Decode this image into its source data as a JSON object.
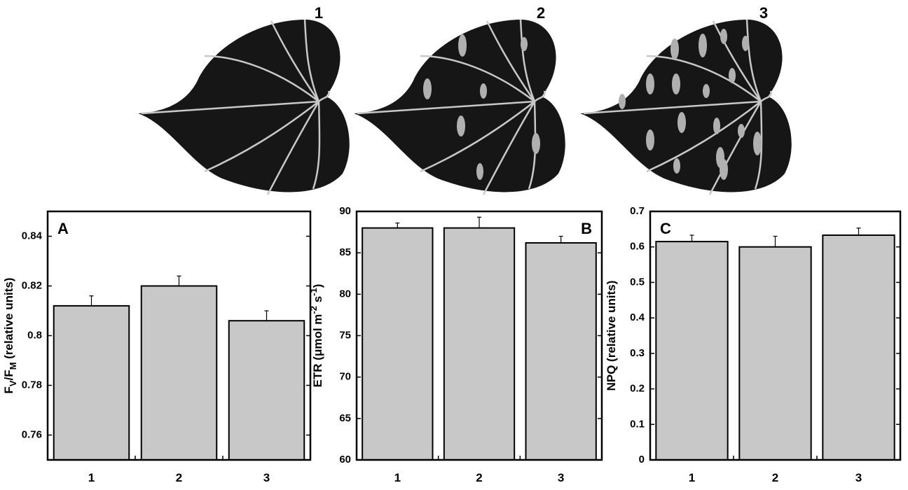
{
  "illustrations": {
    "labels": [
      "1",
      "2",
      "3"
    ]
  },
  "chart_data": [
    {
      "type": "bar",
      "panel": "A",
      "panel_corner": "top-left",
      "ylabel": [
        {
          "text": "F"
        },
        {
          "text": "V",
          "sub": true
        },
        {
          "text": "/F"
        },
        {
          "text": "M",
          "sub": true
        },
        {
          "text": " (relative units)"
        }
      ],
      "categories": [
        "1",
        "2",
        "3"
      ],
      "values": [
        0.812,
        0.82,
        0.806
      ],
      "errors": [
        0.004,
        0.004,
        0.004
      ],
      "color": "#c8c8c8",
      "ylim": [
        0.75,
        0.85
      ],
      "yticks": [
        0.76,
        0.78,
        0.8,
        0.82,
        0.84
      ]
    },
    {
      "type": "bar",
      "panel": "B",
      "panel_corner": "top-right",
      "ylabel": [
        {
          "text": "ETR (μmol m"
        },
        {
          "text": "-2",
          "sup": true
        },
        {
          "text": " s"
        },
        {
          "text": "-1",
          "sup": true
        },
        {
          "text": ")"
        }
      ],
      "categories": [
        "1",
        "2",
        "3"
      ],
      "values": [
        88,
        88,
        86.2
      ],
      "errors": [
        0.6,
        1.3,
        0.8
      ],
      "color": "#c8c8c8",
      "ylim": [
        60,
        90
      ],
      "yticks": [
        60,
        65,
        70,
        75,
        80,
        85,
        90
      ]
    },
    {
      "type": "bar",
      "panel": "C",
      "panel_corner": "top-left",
      "ylabel": [
        {
          "text": "NPQ (relative units)"
        }
      ],
      "categories": [
        "1",
        "2",
        "3"
      ],
      "values": [
        0.615,
        0.6,
        0.633
      ],
      "errors": [
        0.018,
        0.03,
        0.02
      ],
      "color": "#c8c8c8",
      "ylim": [
        0,
        0.7
      ],
      "yticks": [
        0,
        0.1,
        0.2,
        0.3,
        0.4,
        0.5,
        0.6,
        0.7
      ]
    }
  ]
}
